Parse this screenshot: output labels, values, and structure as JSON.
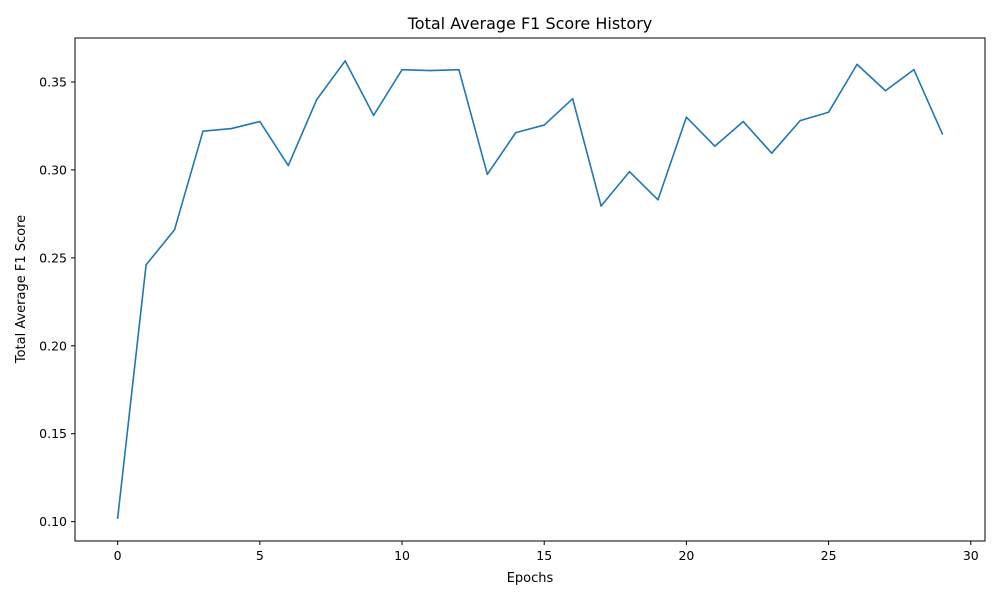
{
  "chart_data": {
    "type": "line",
    "title": "Total Average F1 Score History",
    "xlabel": "Epochs",
    "ylabel": "Total Average F1 Score",
    "xlim": [
      -1.5,
      30.5
    ],
    "ylim": [
      0.089,
      0.375
    ],
    "xticks": [
      "0",
      "5",
      "10",
      "15",
      "20",
      "25",
      "30"
    ],
    "yticks": [
      "0.10",
      "0.15",
      "0.20",
      "0.25",
      "0.30",
      "0.35"
    ],
    "grid": false,
    "legend": "none",
    "series": [
      {
        "color": "#1f77b4",
        "x": [
          0,
          1,
          2,
          3,
          4,
          5,
          6,
          7,
          8,
          9,
          10,
          11,
          12,
          13,
          14,
          15,
          16,
          17,
          18,
          19,
          20,
          21,
          22,
          23,
          24,
          25,
          26,
          27,
          28,
          29
        ],
        "y": [
          0.102,
          0.246,
          0.266,
          0.322,
          0.3235,
          0.3275,
          0.3025,
          0.34,
          0.362,
          0.331,
          0.357,
          0.3565,
          0.357,
          0.2975,
          0.3212,
          0.3255,
          0.3405,
          0.2795,
          0.299,
          0.283,
          0.33,
          0.3135,
          0.3275,
          0.3095,
          0.328,
          0.3328,
          0.36,
          0.345,
          0.357,
          0.3205
        ]
      }
    ]
  }
}
